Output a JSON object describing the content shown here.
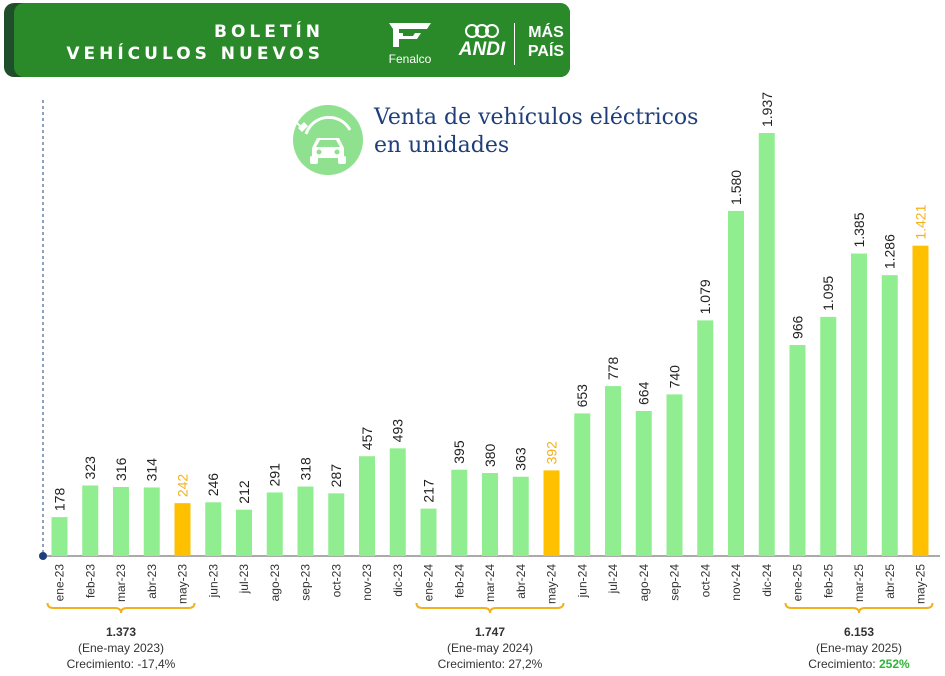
{
  "header": {
    "title_line1": "BOLETÍN",
    "title_line2": "VEHÍCULOS NUEVOS",
    "logos": {
      "fenalco": "Fenalco",
      "andi": "ANDI",
      "mas_pais_line1": "MÁS",
      "mas_pais_line2": "PAÍS"
    }
  },
  "chart_title_line1": "Venta de vehículos eléctricos",
  "chart_title_line2": "en unidades",
  "icon": "electric-car-plug-icon",
  "colors": {
    "banner": "#2a8a2a",
    "banner_shadow": "#1f4e2a",
    "bar": "#90ee90",
    "bar_highlight": "#ffc000",
    "label_highlight": "#f2b01e",
    "growth_highlight": "#2fb33a",
    "title": "#1f3f7a",
    "bracket": "#f2b01e"
  },
  "chart_data": {
    "type": "bar",
    "title": "Venta de vehículos eléctricos en unidades",
    "categories": [
      "ene-23",
      "feb-23",
      "mar-23",
      "abr-23",
      "may-23",
      "jun-23",
      "jul-23",
      "ago-23",
      "sep-23",
      "oct-23",
      "nov-23",
      "dic-23",
      "ene-24",
      "feb-24",
      "mar-24",
      "abr-24",
      "may-24",
      "jun-24",
      "jul-24",
      "ago-24",
      "sep-24",
      "oct-24",
      "nov-24",
      "dic-24",
      "ene-25",
      "feb-25",
      "mar-25",
      "abr-25",
      "may-25"
    ],
    "values": [
      178,
      323,
      316,
      314,
      242,
      246,
      212,
      291,
      318,
      287,
      457,
      493,
      217,
      395,
      380,
      363,
      392,
      653,
      778,
      664,
      740,
      1079,
      1580,
      1937,
      966,
      1095,
      1385,
      1286,
      1421
    ],
    "value_labels": [
      "178",
      "323",
      "316",
      "314",
      "242",
      "246",
      "212",
      "291",
      "318",
      "287",
      "457",
      "493",
      "217",
      "395",
      "380",
      "363",
      "392",
      "653",
      "778",
      "664",
      "740",
      "1.079",
      "1.580",
      "1.937",
      "966",
      "1.095",
      "1.385",
      "1.286",
      "1.421"
    ],
    "highlight_indices": [
      4,
      16,
      28
    ],
    "ylim": [
      0,
      2000
    ],
    "grid": false,
    "legend": "none"
  },
  "summaries": [
    {
      "total": "1.373",
      "period": "(Ene-may 2023)",
      "growth_label": "Crecimiento: ",
      "growth_value": "-17,4%",
      "highlight": false,
      "range": [
        0,
        4
      ]
    },
    {
      "total": "1.747",
      "period": "(Ene-may 2024)",
      "growth_label": "Crecimiento: ",
      "growth_value": "27,2%",
      "highlight": false,
      "range": [
        12,
        16
      ]
    },
    {
      "total": "6.153",
      "period": "(Ene-may 2025)",
      "growth_label": "Crecimiento: ",
      "growth_value": "252%",
      "highlight": true,
      "range": [
        24,
        28
      ]
    }
  ]
}
